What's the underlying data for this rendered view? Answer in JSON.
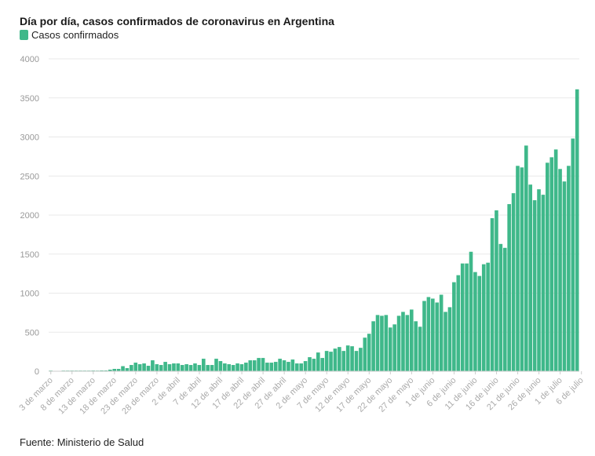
{
  "colors": {
    "bar": "#3fb88a",
    "grid": "#e9e9e9",
    "axis": "#cccccc"
  },
  "footer": {
    "source": "Fuente: Ministerio de Salud"
  },
  "chart_data": {
    "type": "bar",
    "title": "Día por día, casos confirmados de coronavirus en Argentina",
    "legend": [
      {
        "name": "Casos confirmados",
        "color": "#3fb88a"
      }
    ],
    "legend_position": "top-left",
    "xlabel": "",
    "ylabel": "",
    "ylim": [
      0,
      4000
    ],
    "yticks": [
      0,
      500,
      1000,
      1500,
      2000,
      2500,
      3000,
      3500,
      4000
    ],
    "grid": true,
    "start_date": "3 de marzo",
    "end_date": "7 de julio",
    "x_tick_labels": [
      "3 de marzo",
      "8 de marzo",
      "13 de marzo",
      "18 de marzo",
      "23 de marzo",
      "28 de marzo",
      "2 de abril",
      "7 de abril",
      "12 de abril",
      "17 de abril",
      "22 de abril",
      "27 de abril",
      "2 de mayo",
      "7 de mayo",
      "12 de mayo",
      "17 de mayo",
      "22 de mayo",
      "27 de mayo",
      "1 de junio",
      "6 de junio",
      "11 de junio",
      "16 de junio",
      "21 de junio",
      "26 de junio",
      "1 de julio",
      "6 de julio"
    ],
    "series": [
      {
        "name": "Casos confirmados",
        "values": [
          1,
          0,
          0,
          1,
          2,
          3,
          4,
          2,
          3,
          4,
          9,
          3,
          10,
          10,
          20,
          30,
          30,
          65,
          40,
          80,
          110,
          90,
          100,
          70,
          140,
          90,
          80,
          120,
          90,
          100,
          100,
          80,
          90,
          80,
          100,
          80,
          160,
          80,
          80,
          160,
          130,
          100,
          90,
          80,
          100,
          90,
          110,
          140,
          140,
          170,
          170,
          110,
          110,
          120,
          160,
          140,
          120,
          150,
          100,
          100,
          130,
          180,
          160,
          240,
          170,
          260,
          250,
          290,
          310,
          260,
          330,
          320,
          260,
          300,
          430,
          480,
          640,
          720,
          710,
          720,
          560,
          600,
          710,
          760,
          720,
          790,
          640,
          570,
          900,
          950,
          930,
          880,
          980,
          760,
          820,
          1140,
          1230,
          1380,
          1380,
          1530,
          1270,
          1220,
          1370,
          1390,
          1960,
          2060,
          1630,
          1580,
          2140,
          2280,
          2630,
          2610,
          2890,
          2390,
          2190,
          2330,
          2260,
          2670,
          2740,
          2840,
          2590,
          2430,
          2630,
          2980,
          3610
        ]
      }
    ]
  }
}
